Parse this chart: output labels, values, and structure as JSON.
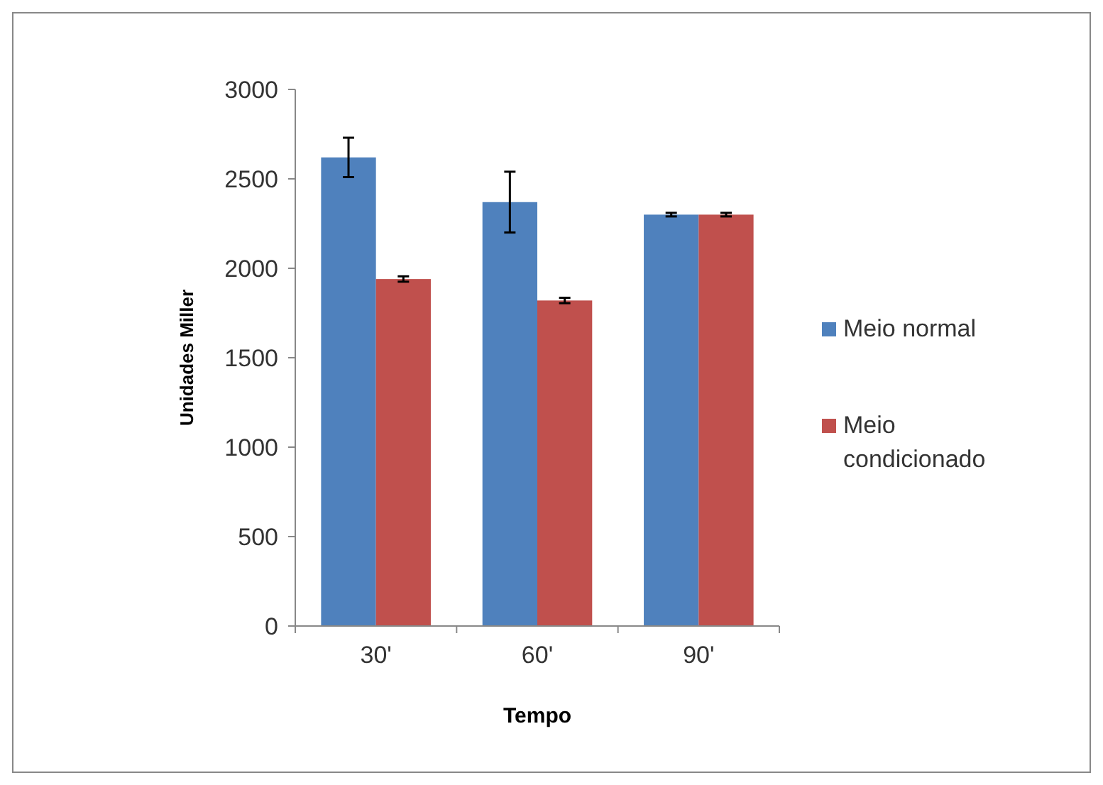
{
  "chart_data": {
    "type": "bar",
    "xlabel": "Tempo",
    "ylabel": "Unidades Miller",
    "categories": [
      "30'",
      "60'",
      "90'"
    ],
    "series": [
      {
        "name": "Meio normal",
        "color": "#4f81bd",
        "values": [
          2620,
          2370,
          2300
        ],
        "errors": [
          110,
          170,
          10
        ]
      },
      {
        "name": "Meio condicionado",
        "color": "#c0504d",
        "values": [
          1940,
          1820,
          2300
        ],
        "errors": [
          15,
          15,
          10
        ]
      }
    ],
    "ylim": [
      0,
      3000
    ],
    "yticks": [
      0,
      500,
      1000,
      1500,
      2000,
      2500,
      3000
    ],
    "legend": "right",
    "grid": false
  }
}
